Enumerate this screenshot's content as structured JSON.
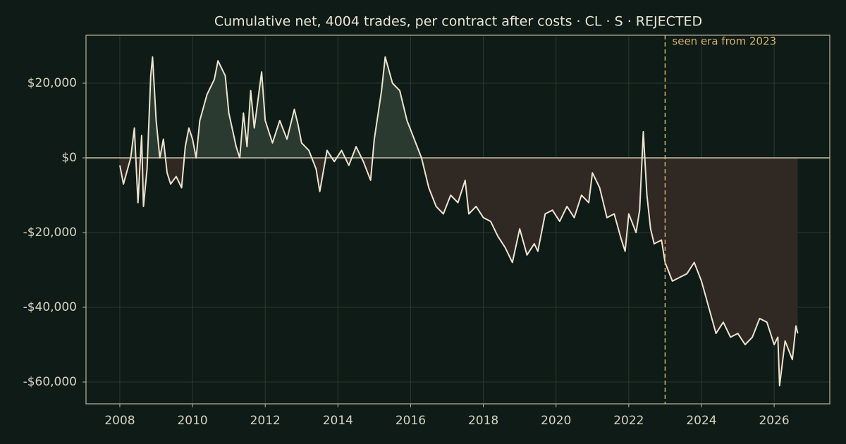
{
  "chart_data": {
    "type": "line",
    "title": "Cumulative net, 4004 trades, per contract after costs  ·  CL · S · REJECTED",
    "x": [
      2008.0,
      2008.1,
      2008.3,
      2008.4,
      2008.5,
      2008.6,
      2008.65,
      2008.75,
      2008.85,
      2008.9,
      2009.0,
      2009.1,
      2009.2,
      2009.3,
      2009.4,
      2009.55,
      2009.7,
      2009.8,
      2009.9,
      2010.0,
      2010.1,
      2010.2,
      2010.4,
      2010.6,
      2010.7,
      2010.9,
      2011.0,
      2011.2,
      2011.3,
      2011.4,
      2011.5,
      2011.6,
      2011.7,
      2011.9,
      2012.0,
      2012.2,
      2012.4,
      2012.6,
      2012.8,
      2012.9,
      2013.0,
      2013.2,
      2013.4,
      2013.5,
      2013.7,
      2013.9,
      2014.1,
      2014.3,
      2014.5,
      2014.7,
      2014.9,
      2015.0,
      2015.2,
      2015.3,
      2015.5,
      2015.7,
      2015.9,
      2016.1,
      2016.3,
      2016.5,
      2016.7,
      2016.9,
      2017.1,
      2017.3,
      2017.5,
      2017.6,
      2017.8,
      2018.0,
      2018.2,
      2018.4,
      2018.6,
      2018.8,
      2019.0,
      2019.2,
      2019.4,
      2019.5,
      2019.7,
      2019.9,
      2020.1,
      2020.3,
      2020.5,
      2020.7,
      2020.9,
      2021.0,
      2021.2,
      2021.4,
      2021.6,
      2021.8,
      2021.9,
      2022.0,
      2022.2,
      2022.3,
      2022.4,
      2022.5,
      2022.6,
      2022.7,
      2022.9,
      2023.0,
      2023.2,
      2023.4,
      2023.6,
      2023.8,
      2024.0,
      2024.2,
      2024.4,
      2024.6,
      2024.8,
      2025.0,
      2025.2,
      2025.4,
      2025.6,
      2025.8,
      2026.0,
      2026.1,
      2026.15,
      2026.3,
      2026.5,
      2026.6,
      2026.65
    ],
    "series": [
      {
        "color": "#ede3cf",
        "values": [
          -2000,
          -7000,
          0,
          8000,
          -12000,
          6000,
          -13000,
          -3000,
          22000,
          27000,
          10000,
          0,
          5000,
          -4000,
          -7000,
          -5000,
          -8000,
          3000,
          8000,
          5000,
          0,
          10000,
          17000,
          21000,
          26000,
          22000,
          12000,
          3000,
          0,
          12000,
          3000,
          18000,
          8000,
          23000,
          10000,
          4000,
          10000,
          5000,
          13000,
          9000,
          4000,
          2000,
          -3000,
          -9000,
          2000,
          -1000,
          2000,
          -2000,
          3000,
          -1000,
          -6000,
          5000,
          18000,
          27000,
          20000,
          18000,
          10000,
          5000,
          0,
          -8000,
          -13000,
          -15000,
          -10000,
          -12000,
          -6000,
          -15000,
          -13000,
          -16000,
          -17000,
          -21000,
          -24000,
          -28000,
          -19000,
          -26000,
          -23000,
          -25000,
          -15000,
          -14000,
          -17000,
          -13000,
          -16000,
          -10000,
          -12000,
          -4000,
          -8000,
          -16000,
          -15000,
          -22000,
          -25000,
          -15000,
          -20000,
          -14000,
          7000,
          -10000,
          -19000,
          -23000,
          -22000,
          -28000,
          -33000,
          -32000,
          -31000,
          -28000,
          -33000,
          -40000,
          -47000,
          -44000,
          -48000,
          -47000,
          -50000,
          -48000,
          -43000,
          -44000,
          -50000,
          -48000,
          -61000,
          -49000,
          -54000,
          -45000,
          -47000
        ]
      }
    ],
    "fill_above": "#2a3a30",
    "fill_below": "#2f2823",
    "xlim": [
      2007.07,
      2027.53
    ],
    "xticks": [
      2008,
      2010,
      2012,
      2014,
      2016,
      2018,
      2020,
      2022,
      2024,
      2026
    ],
    "ylim": [
      -65850,
      32830
    ],
    "yticks": [
      {
        "value": -60000,
        "label": "-$60,000"
      },
      {
        "value": -40000,
        "label": "-$40,000"
      },
      {
        "value": -20000,
        "label": "-$20,000"
      },
      {
        "value": 0,
        "label": "$0"
      },
      {
        "value": 20000,
        "label": "$20,000"
      }
    ],
    "grid": true,
    "marker": {
      "x": 2023,
      "label": "seen era from 2023",
      "color": "#d9b06e"
    }
  }
}
